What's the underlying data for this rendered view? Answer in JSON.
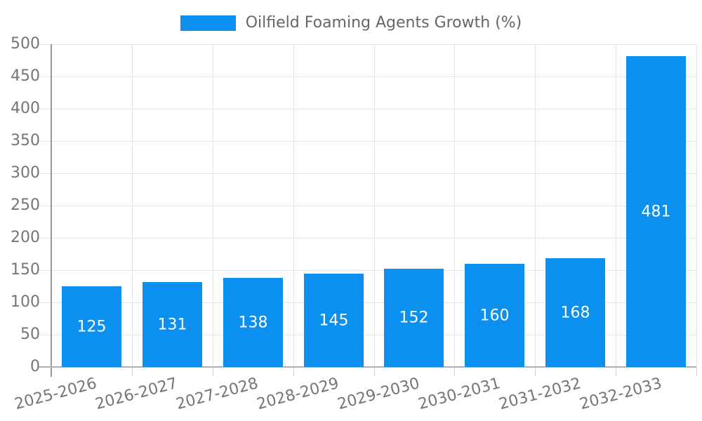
{
  "legend": {
    "label": "Oilfield Foaming Agents Growth (%)"
  },
  "chart_data": {
    "type": "bar",
    "title": "Oilfield Foaming Agents Growth (%)",
    "categories": [
      "2025-2026",
      "2026-2027",
      "2027-2028",
      "2028-2029",
      "2029-2030",
      "2030-2031",
      "2031-2032",
      "2032-2033"
    ],
    "values": [
      125,
      131,
      138,
      145,
      152,
      160,
      168,
      481
    ],
    "xlabel": "",
    "ylabel": "",
    "ylim": [
      0,
      500
    ],
    "ytick_step": 50,
    "grid": true,
    "legend_position": "top",
    "colors": {
      "bar": "#0b90f0",
      "value_label": "#ffffff",
      "grid_line": "#e5e5e5",
      "axis_line_y": "#979797",
      "axis_line_x": "#b0b0b0",
      "tick_label": "#757575",
      "legend_text": "#666666",
      "background": "#ffffff"
    }
  }
}
